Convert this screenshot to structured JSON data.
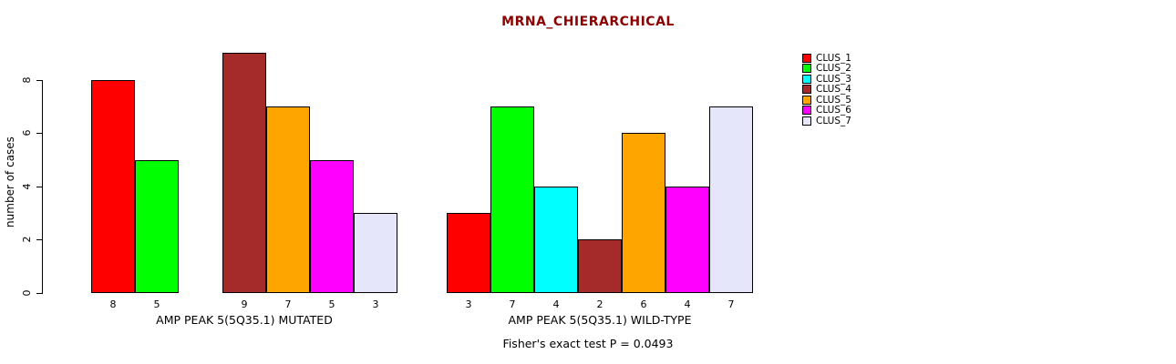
{
  "chart_data": {
    "type": "bar",
    "title": "MRNA_CHIERARCHICAL",
    "title_color": "#8B0000",
    "ylabel": "number of cases",
    "ylim": [
      0,
      9
    ],
    "yticks": [
      0,
      2,
      4,
      6,
      8
    ],
    "grid": false,
    "legend_position": "top-right",
    "clusters": [
      {
        "name": "CLUS_1",
        "color": "#FF0000"
      },
      {
        "name": "CLUS_2",
        "color": "#00FF00"
      },
      {
        "name": "CLUS_3",
        "color": "#00FFFF"
      },
      {
        "name": "CLUS_4",
        "color": "#A52A2A"
      },
      {
        "name": "CLUS_5",
        "color": "#FFA500"
      },
      {
        "name": "CLUS_6",
        "color": "#FF00FF"
      },
      {
        "name": "CLUS_7",
        "color": "#E6E6FA"
      }
    ],
    "groups": [
      {
        "label": "AMP PEAK  5(5Q35.1) MUTATED",
        "values": [
          8,
          5,
          0,
          9,
          7,
          5,
          3
        ]
      },
      {
        "label": "AMP PEAK  5(5Q35.1) WILD-TYPE",
        "values": [
          3,
          7,
          4,
          2,
          6,
          4,
          7
        ]
      }
    ],
    "annotation": "Fisher's exact test P = 0.0493"
  }
}
